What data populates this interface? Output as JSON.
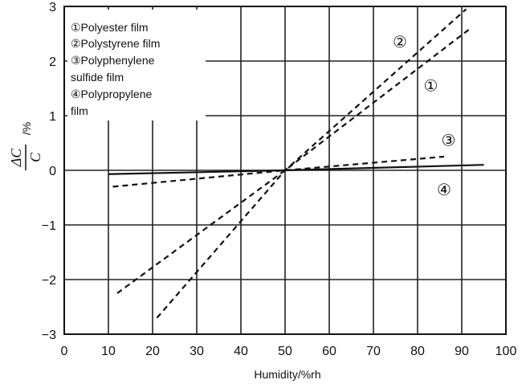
{
  "chart_data": {
    "type": "line",
    "title": "",
    "xlabel": "Humidity/%rh",
    "ylabel": "ΔC/C /%",
    "ylabel_parts": {
      "numerator": "ΔC",
      "denominator": "C",
      "unit": "/%"
    },
    "xlim": [
      0,
      100
    ],
    "ylim": [
      -3,
      3
    ],
    "xticks": [
      0,
      10,
      20,
      30,
      40,
      50,
      60,
      70,
      80,
      90,
      100
    ],
    "yticks": [
      -3,
      -2,
      -1,
      0,
      1,
      2,
      3
    ],
    "xtick_labels": [
      "0",
      "10",
      "20",
      "30",
      "40",
      "50",
      "60",
      "70",
      "80",
      "90",
      "100"
    ],
    "ytick_labels": [
      "−3",
      "−2",
      "−1",
      "0",
      "1",
      "2",
      "3"
    ],
    "grid": true,
    "legend_placement": "top-left",
    "legend": [
      "①Polyester film",
      "②Polystyrene film",
      "③Polyphenylene sulfide film",
      "④Polypropylene film"
    ],
    "series": [
      {
        "name": "①Polyester film",
        "marker": "①",
        "style": "dashed",
        "x": [
          12,
          50,
          92
        ],
        "y": [
          -2.25,
          0,
          2.6
        ]
      },
      {
        "name": "②Polystyrene film",
        "marker": "②",
        "style": "dashed",
        "x": [
          21,
          50,
          91
        ],
        "y": [
          -2.7,
          0,
          2.95
        ]
      },
      {
        "name": "③Polyphenylene sulfide film",
        "marker": "③",
        "style": "dashed",
        "x": [
          11,
          50,
          86
        ],
        "y": [
          -0.3,
          0,
          0.25
        ]
      },
      {
        "name": "④Polypropylene film",
        "marker": "④",
        "style": "solid",
        "x": [
          10,
          50,
          95
        ],
        "y": [
          -0.07,
          0,
          0.1
        ]
      }
    ]
  }
}
